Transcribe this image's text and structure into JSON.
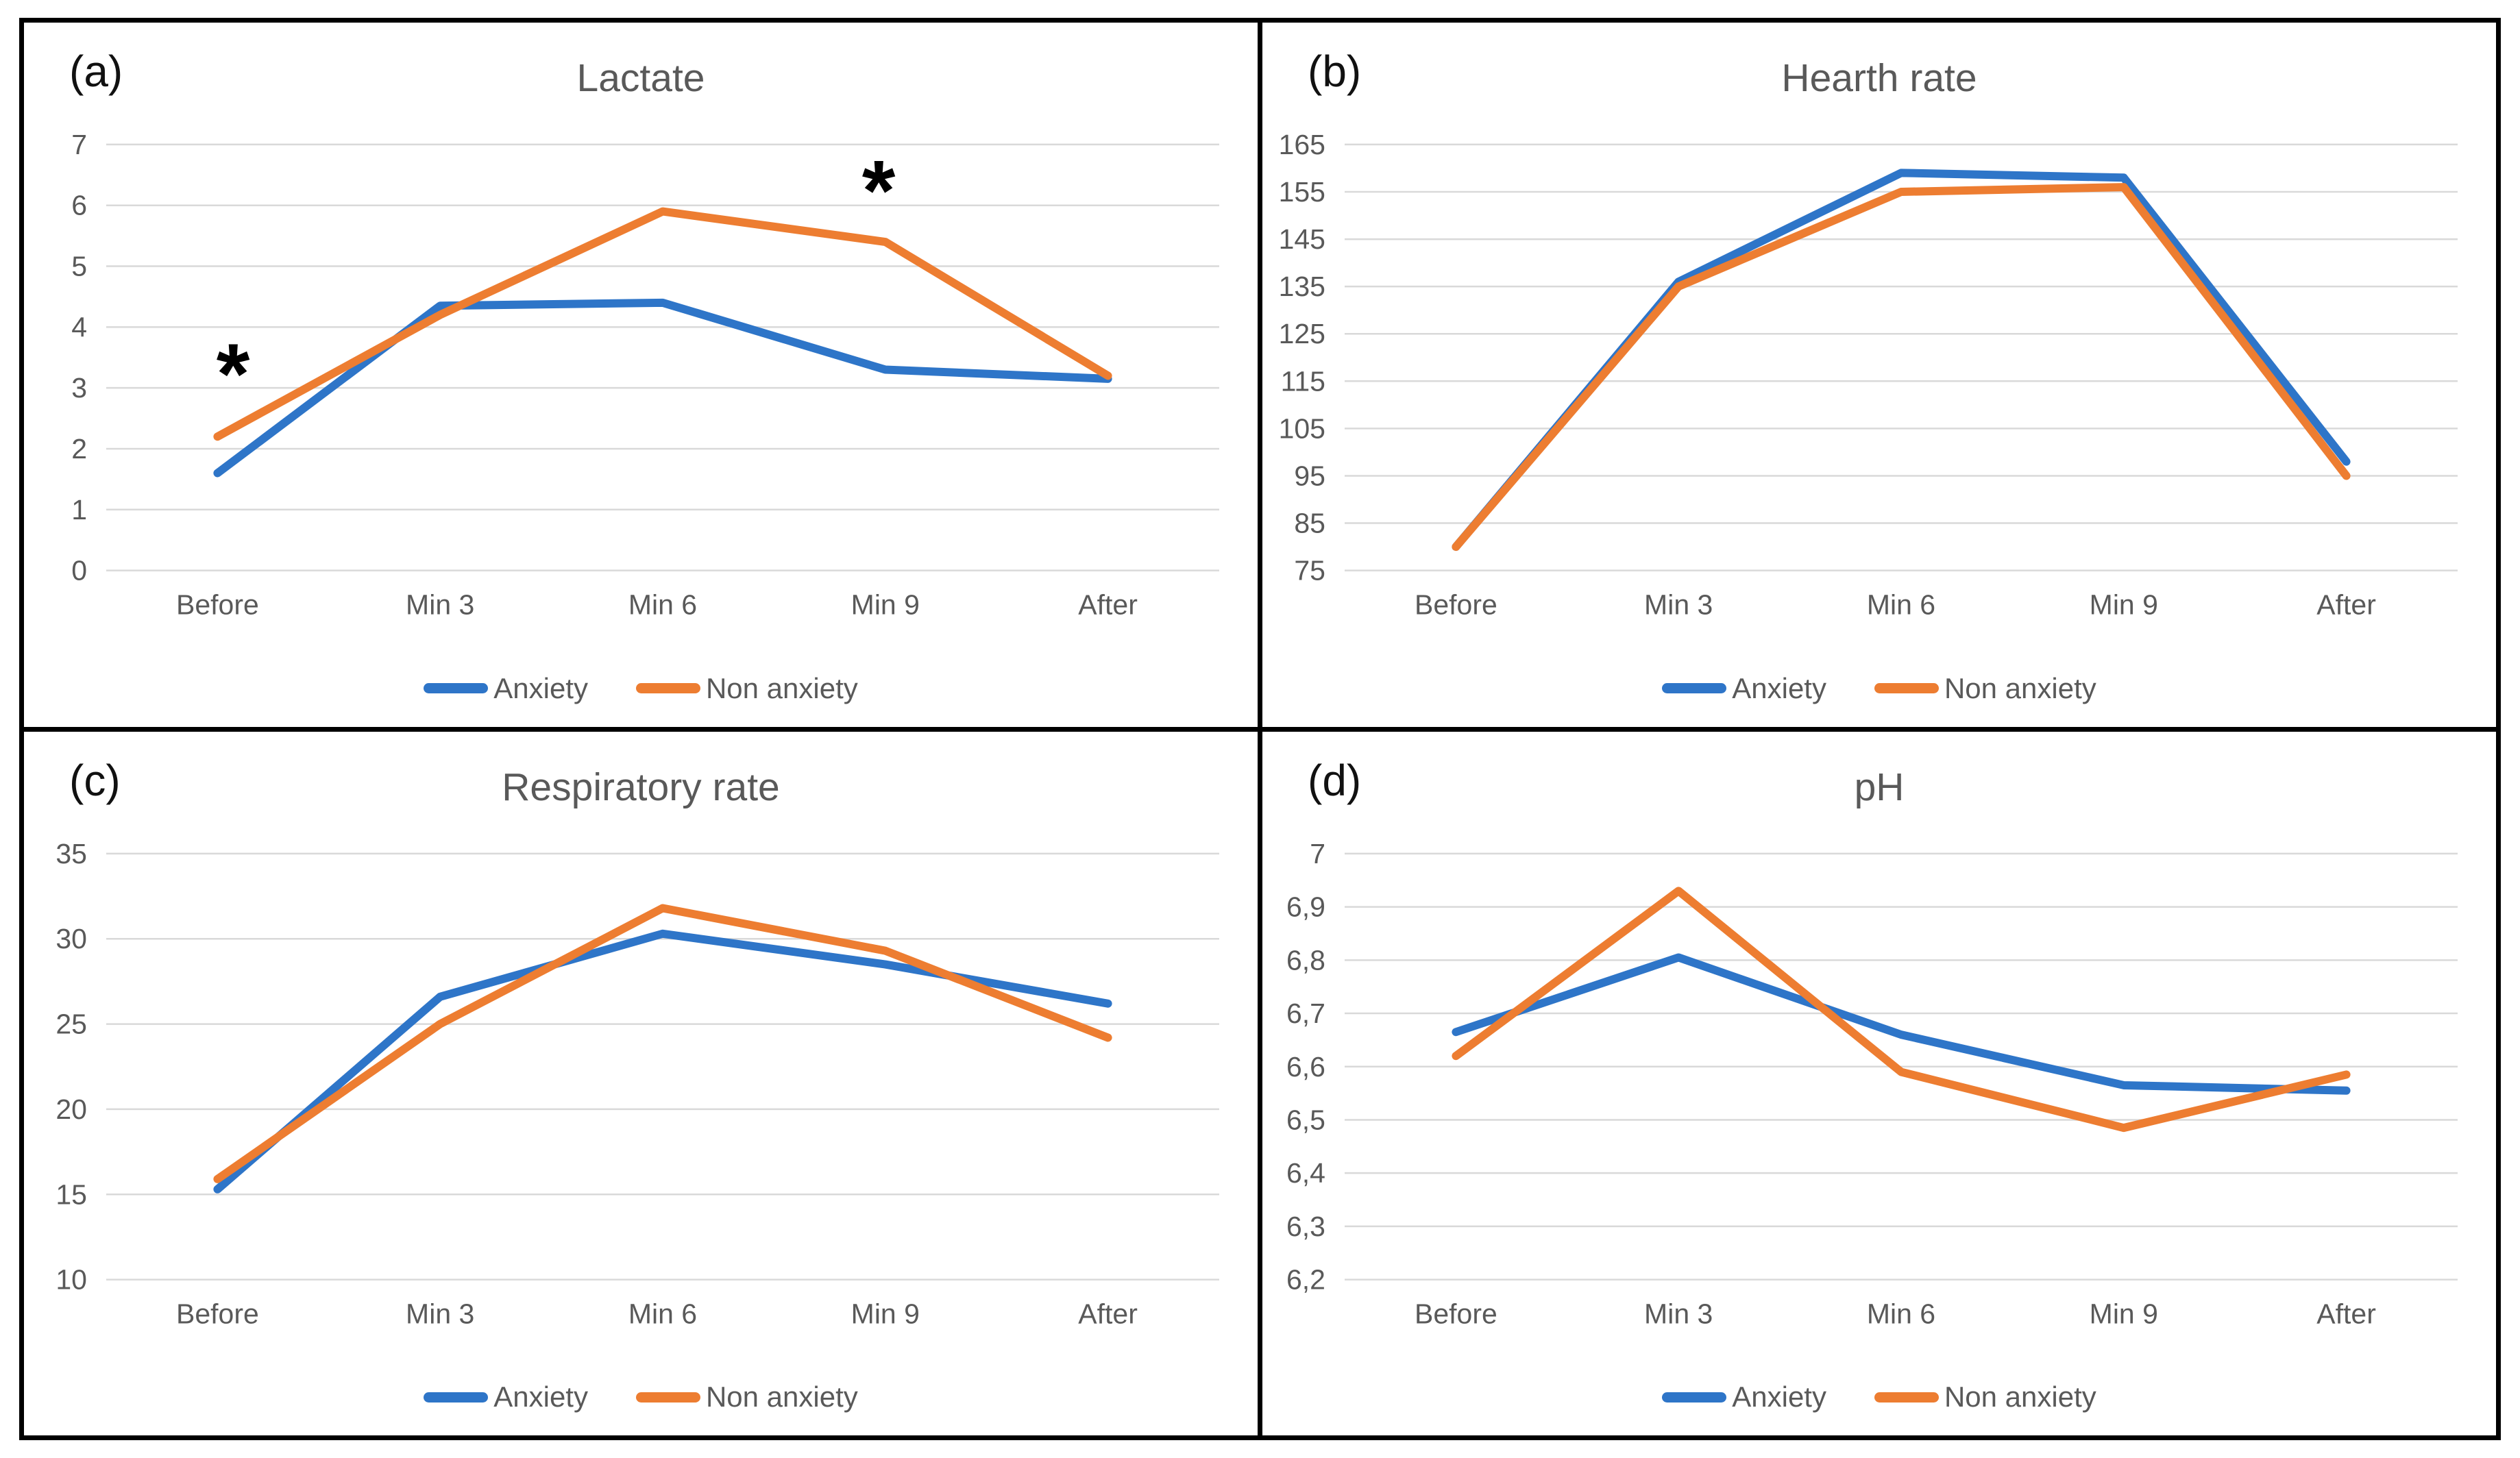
{
  "figure": {
    "background": "#ffffff",
    "frame_color": "#000000",
    "grid_color": "#d9d9d9",
    "axis_text_color": "#595959",
    "title_color": "#595959",
    "letter_color": "#111111",
    "annotation_color": "#000000",
    "series_colors": {
      "anxiety_blue": "#2e75c8",
      "non_anxiety_orange": "#ed7d31"
    }
  },
  "chart_data": [
    {
      "type": "line",
      "letter": "(a)",
      "title": "Lactate",
      "categories": [
        "Before",
        "Min 3",
        "Min 6",
        "Min 9",
        "After"
      ],
      "series": [
        {
          "name": "Anxiety",
          "color": "#2e75c8",
          "values": [
            1.6,
            4.35,
            4.4,
            3.3,
            3.15
          ]
        },
        {
          "name": "Non anxiety",
          "color": "#ed7d31",
          "values": [
            2.2,
            4.2,
            5.9,
            5.4,
            3.2
          ]
        }
      ],
      "ylim": [
        0,
        7
      ],
      "yticks": [
        {
          "v": 0,
          "label": "0"
        },
        {
          "v": 1,
          "label": "1"
        },
        {
          "v": 2,
          "label": "2"
        },
        {
          "v": 3,
          "label": "3"
        },
        {
          "v": 4,
          "label": "4"
        },
        {
          "v": 5,
          "label": "5"
        },
        {
          "v": 6,
          "label": "6"
        },
        {
          "v": 7,
          "label": "7"
        }
      ],
      "annotations": [
        {
          "x": 0.07,
          "y": 3.44,
          "text": "*"
        },
        {
          "x": 2.97,
          "y": 6.45,
          "text": "*"
        }
      ],
      "grid": "horizontal",
      "legend_position": "bottom"
    },
    {
      "type": "line",
      "letter": "(b)",
      "title": "Hearth rate",
      "categories": [
        "Before",
        "Min 3",
        "Min 6",
        "Min 9",
        "After"
      ],
      "series": [
        {
          "name": "Anxiety",
          "color": "#2e75c8",
          "values": [
            80,
            136,
            159,
            158,
            98
          ]
        },
        {
          "name": "Non anxiety",
          "color": "#ed7d31",
          "values": [
            80,
            135,
            155,
            156,
            95
          ]
        }
      ],
      "ylim": [
        75,
        165
      ],
      "yticks": [
        {
          "v": 75,
          "label": "75"
        },
        {
          "v": 85,
          "label": "85"
        },
        {
          "v": 95,
          "label": "95"
        },
        {
          "v": 105,
          "label": "105"
        },
        {
          "v": 115,
          "label": "115"
        },
        {
          "v": 125,
          "label": "125"
        },
        {
          "v": 135,
          "label": "135"
        },
        {
          "v": 145,
          "label": "145"
        },
        {
          "v": 155,
          "label": "155"
        },
        {
          "v": 165,
          "label": "165"
        }
      ],
      "annotations": [],
      "grid": "horizontal",
      "legend_position": "bottom"
    },
    {
      "type": "line",
      "letter": "(c)",
      "title": "Respiratory rate",
      "categories": [
        "Before",
        "Min 3",
        "Min 6",
        "Min 9",
        "After"
      ],
      "series": [
        {
          "name": "Anxiety",
          "color": "#2e75c8",
          "values": [
            15.3,
            26.6,
            30.3,
            28.5,
            26.2
          ]
        },
        {
          "name": "Non anxiety",
          "color": "#ed7d31",
          "values": [
            15.9,
            25.0,
            31.8,
            29.3,
            24.2
          ]
        }
      ],
      "ylim": [
        10,
        35
      ],
      "yticks": [
        {
          "v": 10,
          "label": "10"
        },
        {
          "v": 15,
          "label": "15"
        },
        {
          "v": 20,
          "label": "20"
        },
        {
          "v": 25,
          "label": "25"
        },
        {
          "v": 30,
          "label": "30"
        },
        {
          "v": 35,
          "label": "35"
        }
      ],
      "annotations": [],
      "grid": "horizontal",
      "legend_position": "bottom"
    },
    {
      "type": "line",
      "letter": "(d)",
      "title": "pH",
      "categories": [
        "Before",
        "Min 3",
        "Min 6",
        "Min 9",
        "After"
      ],
      "series": [
        {
          "name": "Anxiety",
          "color": "#2e75c8",
          "values": [
            6.665,
            6.805,
            6.66,
            6.565,
            6.555
          ]
        },
        {
          "name": "Non anxiety",
          "color": "#ed7d31",
          "values": [
            6.62,
            6.93,
            6.59,
            6.485,
            6.585
          ]
        }
      ],
      "ylim": [
        6.2,
        7.0
      ],
      "yticks": [
        {
          "v": 6.2,
          "label": "6,2"
        },
        {
          "v": 6.3,
          "label": "6,3"
        },
        {
          "v": 6.4,
          "label": "6,4"
        },
        {
          "v": 6.5,
          "label": "6,5"
        },
        {
          "v": 6.6,
          "label": "6,6"
        },
        {
          "v": 6.7,
          "label": "6,7"
        },
        {
          "v": 6.8,
          "label": "6,8"
        },
        {
          "v": 6.9,
          "label": "6,9"
        },
        {
          "v": 7.0,
          "label": "7"
        }
      ],
      "annotations": [],
      "grid": "horizontal",
      "legend_position": "bottom"
    }
  ]
}
